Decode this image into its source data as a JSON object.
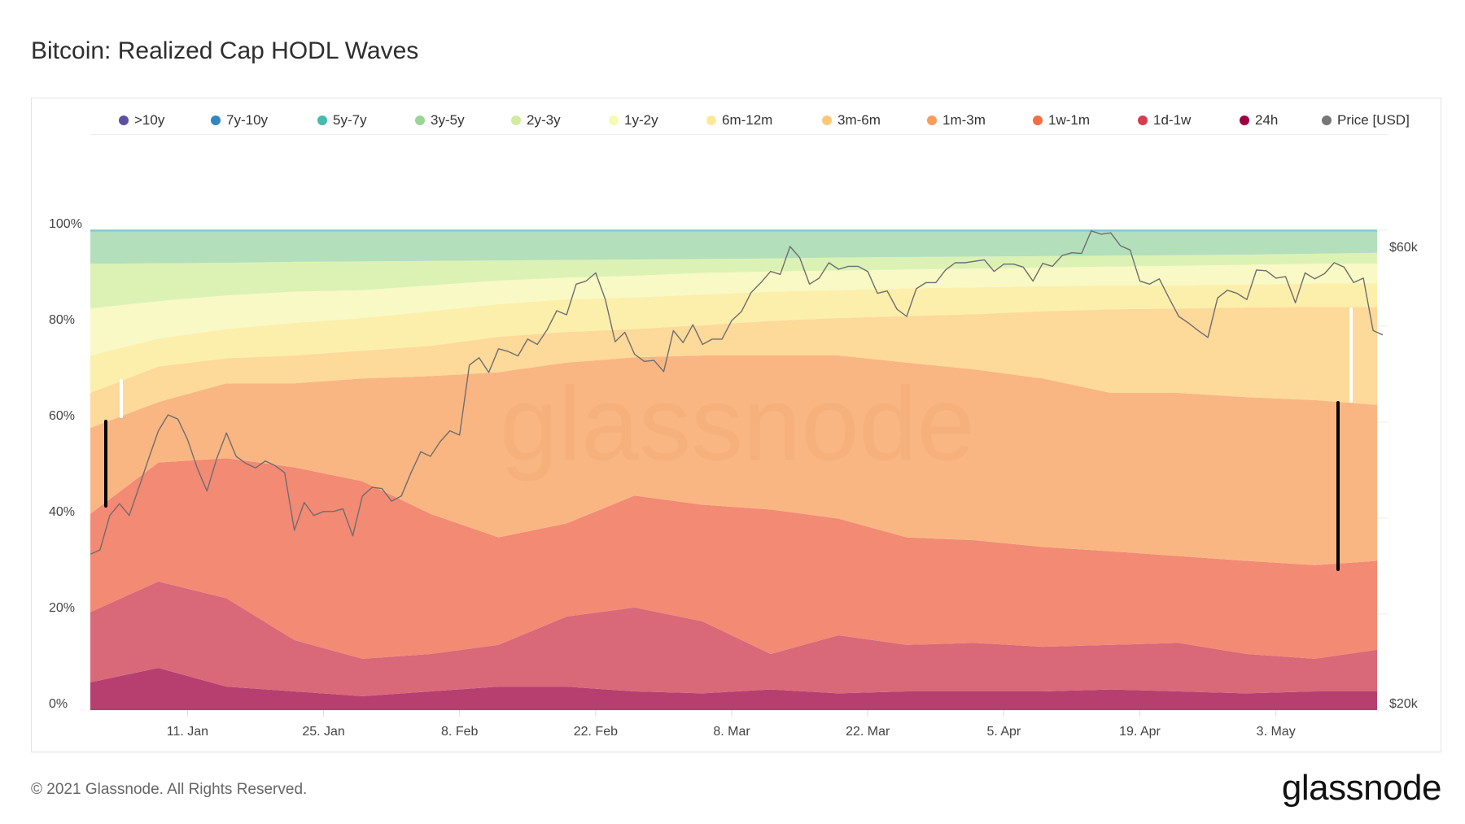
{
  "title": "Bitcoin: Realized Cap HODL Waves",
  "footer": "© 2021 Glassnode. All Rights Reserved.",
  "logo": "glassnode",
  "watermark": "glassnode",
  "chart_data": {
    "type": "area",
    "stacked": "percent",
    "title": "Bitcoin: Realized Cap HODL Waves",
    "legend_position": "top",
    "grid": true,
    "y_left": {
      "range": [
        0,
        100
      ],
      "unit": "%",
      "ticks": [
        "0%",
        "20%",
        "40%",
        "60%",
        "80%",
        "100%"
      ],
      "tick_values": [
        0,
        20,
        40,
        60,
        80,
        100
      ]
    },
    "y_right": {
      "scale": "log",
      "ticks": [
        "$20k",
        "$60k"
      ],
      "tick_values": [
        20000,
        60000
      ]
    },
    "x_ticks": [
      {
        "label": "11. Jan",
        "date": "2021-01-11"
      },
      {
        "label": "25. Jan",
        "date": "2021-01-25"
      },
      {
        "label": "8. Feb",
        "date": "2021-02-08"
      },
      {
        "label": "22. Feb",
        "date": "2021-02-22"
      },
      {
        "label": "8. Mar",
        "date": "2021-03-08"
      },
      {
        "label": "22. Mar",
        "date": "2021-03-22"
      },
      {
        "label": "5. Apr",
        "date": "2021-04-05"
      },
      {
        "label": "19. Apr",
        "date": "2021-04-19"
      },
      {
        "label": "3. May",
        "date": "2021-05-03"
      }
    ],
    "legend": [
      ">10y",
      "7y-10y",
      "5y-7y",
      "3y-5y",
      "2y-3y",
      "1y-2y",
      "6m-12m",
      "3m-6m",
      "1m-3m",
      "1w-1m",
      "1d-1w",
      "24h",
      "Price [USD]"
    ],
    "band_dates": [
      "2021-01-01",
      "2021-01-08",
      "2021-01-15",
      "2021-01-22",
      "2021-01-29",
      "2021-02-05",
      "2021-02-12",
      "2021-02-19",
      "2021-02-26",
      "2021-03-05",
      "2021-03-12",
      "2021-03-19",
      "2021-03-26",
      "2021-04-02",
      "2021-04-09",
      "2021-04-16",
      "2021-04-23",
      "2021-04-30",
      "2021-05-07",
      "2021-05-13"
    ],
    "series": [
      {
        "name": "24h",
        "color": "#9e0142",
        "fill": "#b63f70",
        "values": [
          5.8,
          8.8,
          4.9,
          3.9,
          2.9,
          3.9,
          4.9,
          4.9,
          3.9,
          3.5,
          4.3,
          3.5,
          3.9,
          3.9,
          3.9,
          4.3,
          3.9,
          3.5,
          3.9,
          3.9
        ]
      },
      {
        "name": "1d-1w",
        "color": "#d53e4f",
        "fill": "#d96879",
        "values": [
          14.6,
          18.0,
          18.4,
          10.7,
          7.8,
          7.8,
          8.7,
          14.6,
          17.5,
          15.0,
          7.4,
          12.1,
          9.7,
          10.1,
          9.3,
          9.3,
          10.1,
          8.2,
          6.8,
          8.7
        ]
      },
      {
        "name": "1w-1m",
        "color": "#f46d43",
        "fill": "#f28a74",
        "values": [
          20.5,
          24.8,
          29.2,
          36.0,
          37.0,
          29.2,
          22.4,
          19.4,
          23.3,
          24.3,
          30.1,
          24.3,
          22.4,
          21.4,
          20.8,
          19.5,
          18.1,
          19.4,
          19.5,
          18.5
        ]
      },
      {
        "name": "1m-3m",
        "color": "#fa9c5a",
        "fill": "#f9b682",
        "values": [
          17.9,
          12.6,
          15.6,
          17.5,
          21.4,
          28.7,
          34.4,
          33.5,
          28.8,
          31.1,
          32.1,
          34.0,
          36.4,
          35.6,
          35.1,
          33.0,
          34.0,
          34.1,
          34.4,
          32.5
        ]
      },
      {
        "name": "3m-6m",
        "color": "#fdc877",
        "fill": "#fdd99a",
        "values": [
          7.3,
          7.4,
          5.2,
          5.8,
          5.8,
          6.3,
          7.4,
          6.4,
          5.9,
          6.3,
          7.2,
          7.8,
          9.7,
          11.5,
          14.0,
          17.4,
          17.6,
          18.7,
          19.4,
          20.4
        ]
      },
      {
        "name": "6m-12m",
        "color": "#fee99a",
        "fill": "#fcefab",
        "values": [
          7.8,
          5.8,
          6.1,
          6.8,
          6.8,
          7.2,
          6.8,
          6.8,
          6.6,
          6.4,
          6.1,
          5.8,
          5.8,
          5.6,
          5.2,
          5.0,
          4.8,
          4.8,
          4.9,
          4.9
        ]
      },
      {
        "name": "1y-2y",
        "color": "#f6fbb0",
        "fill": "#f8f9c4",
        "values": [
          9.8,
          7.8,
          7.0,
          6.5,
          5.8,
          5.4,
          4.9,
          4.5,
          4.5,
          4.5,
          4.2,
          4.1,
          3.9,
          3.9,
          3.9,
          3.9,
          4.1,
          4.1,
          4.1,
          4.1
        ]
      },
      {
        "name": "2y-3y",
        "color": "#d1ec9c",
        "fill": "#dcf2b5",
        "values": [
          9.3,
          7.9,
          6.8,
          6.2,
          6.0,
          5.1,
          4.2,
          3.7,
          3.4,
          2.9,
          2.7,
          2.7,
          2.6,
          2.5,
          2.4,
          2.3,
          2.2,
          2.1,
          2.1,
          2.3
        ]
      },
      {
        "name": "3y-5y",
        "color": "#99d594",
        "fill": "#b3dfbb",
        "values": [
          6.6,
          6.5,
          6.4,
          6.2,
          6.1,
          6.0,
          5.9,
          5.8,
          5.7,
          5.6,
          5.5,
          5.3,
          5.2,
          5.1,
          5.0,
          4.9,
          4.8,
          4.7,
          4.5,
          4.3
        ]
      },
      {
        "name": "5y-7y",
        "color": "#48b9ad",
        "fill": "#8fd3c9",
        "values": [
          0.25,
          0.25,
          0.25,
          0.25,
          0.25,
          0.25,
          0.25,
          0.25,
          0.25,
          0.25,
          0.25,
          0.25,
          0.25,
          0.25,
          0.25,
          0.25,
          0.25,
          0.25,
          0.25,
          0.25
        ]
      },
      {
        "name": "7y-10y",
        "color": "#3288bd",
        "fill": "#7fb3dc",
        "values": [
          0.1,
          0.1,
          0.1,
          0.1,
          0.1,
          0.1,
          0.1,
          0.1,
          0.1,
          0.1,
          0.1,
          0.1,
          0.1,
          0.1,
          0.1,
          0.1,
          0.1,
          0.1,
          0.1,
          0.1
        ]
      },
      {
        "name": ">10y",
        "color": "#5e4fa2",
        "fill": "#9b8fc9",
        "values": [
          0.05,
          0.05,
          0.05,
          0.05,
          0.05,
          0.05,
          0.05,
          0.05,
          0.05,
          0.05,
          0.05,
          0.05,
          0.05,
          0.05,
          0.05,
          0.05,
          0.05,
          0.05,
          0.05,
          0.05
        ]
      }
    ],
    "price": {
      "name": "Price [USD]",
      "color": "#777777",
      "dates": [
        "2021-01-01",
        "2021-01-02",
        "2021-01-03",
        "2021-01-04",
        "2021-01-05",
        "2021-01-06",
        "2021-01-07",
        "2021-01-08",
        "2021-01-09",
        "2021-01-10",
        "2021-01-11",
        "2021-01-12",
        "2021-01-13",
        "2021-01-14",
        "2021-01-15",
        "2021-01-16",
        "2021-01-17",
        "2021-01-18",
        "2021-01-19",
        "2021-01-20",
        "2021-01-21",
        "2021-01-22",
        "2021-01-23",
        "2021-01-24",
        "2021-01-25",
        "2021-01-26",
        "2021-01-27",
        "2021-01-28",
        "2021-01-29",
        "2021-01-30",
        "2021-01-31",
        "2021-02-01",
        "2021-02-02",
        "2021-02-03",
        "2021-02-04",
        "2021-02-05",
        "2021-02-06",
        "2021-02-07",
        "2021-02-08",
        "2021-02-09",
        "2021-02-10",
        "2021-02-11",
        "2021-02-12",
        "2021-02-13",
        "2021-02-14",
        "2021-02-15",
        "2021-02-16",
        "2021-02-17",
        "2021-02-18",
        "2021-02-19",
        "2021-02-20",
        "2021-02-21",
        "2021-02-22",
        "2021-02-23",
        "2021-02-24",
        "2021-02-25",
        "2021-02-26",
        "2021-02-27",
        "2021-02-28",
        "2021-03-01",
        "2021-03-02",
        "2021-03-03",
        "2021-03-04",
        "2021-03-05",
        "2021-03-06",
        "2021-03-07",
        "2021-03-08",
        "2021-03-09",
        "2021-03-10",
        "2021-03-11",
        "2021-03-12",
        "2021-03-13",
        "2021-03-14",
        "2021-03-15",
        "2021-03-16",
        "2021-03-17",
        "2021-03-18",
        "2021-03-19",
        "2021-03-20",
        "2021-03-21",
        "2021-03-22",
        "2021-03-23",
        "2021-03-24",
        "2021-03-25",
        "2021-03-26",
        "2021-03-27",
        "2021-03-28",
        "2021-03-29",
        "2021-03-30",
        "2021-03-31",
        "2021-04-01",
        "2021-04-02",
        "2021-04-03",
        "2021-04-04",
        "2021-04-05",
        "2021-04-06",
        "2021-04-07",
        "2021-04-08",
        "2021-04-09",
        "2021-04-10",
        "2021-04-11",
        "2021-04-12",
        "2021-04-13",
        "2021-04-14",
        "2021-04-15",
        "2021-04-16",
        "2021-04-17",
        "2021-04-18",
        "2021-04-19",
        "2021-04-20",
        "2021-04-21",
        "2021-04-22",
        "2021-04-23",
        "2021-04-24",
        "2021-04-25",
        "2021-04-26",
        "2021-04-27",
        "2021-04-28",
        "2021-04-29",
        "2021-04-30",
        "2021-05-01",
        "2021-05-02",
        "2021-05-03",
        "2021-05-04",
        "2021-05-05",
        "2021-05-06",
        "2021-05-07",
        "2021-05-08",
        "2021-05-09",
        "2021-05-10",
        "2021-05-11",
        "2021-05-12",
        "2021-05-13",
        "2021-05-14"
      ],
      "values": [
        28600,
        28900,
        31400,
        32300,
        31400,
        33600,
        36000,
        38500,
        40000,
        39600,
        37700,
        35200,
        33300,
        36000,
        38300,
        36200,
        35600,
        35200,
        35800,
        35400,
        34800,
        30300,
        32400,
        31400,
        31700,
        31700,
        31900,
        29900,
        32900,
        33600,
        33500,
        32500,
        32900,
        34800,
        36600,
        36200,
        37500,
        38500,
        38100,
        45100,
        45900,
        44300,
        46900,
        46600,
        46100,
        48000,
        47400,
        49100,
        51400,
        50900,
        54800,
        55200,
        56300,
        52800,
        47700,
        48800,
        46300,
        45500,
        45600,
        44400,
        49000,
        47600,
        49700,
        47400,
        48000,
        48000,
        50200,
        51300,
        53700,
        55000,
        56500,
        56100,
        60000,
        58400,
        54800,
        55600,
        57700,
        56800,
        57200,
        57200,
        56500,
        53600,
        53900,
        51600,
        50700,
        54200,
        55000,
        55000,
        56700,
        57700,
        57700,
        57900,
        58100,
        56500,
        57500,
        57500,
        57100,
        55200,
        57600,
        57200,
        58700,
        59100,
        59000,
        62300,
        61800,
        62000,
        60100,
        59500,
        55200,
        54800,
        55500,
        53000,
        50700,
        49900,
        49000,
        48200,
        53000,
        54000,
        53600,
        52800,
        56700,
        56600,
        55600,
        55800,
        52400,
        56300,
        55500,
        56200,
        57700,
        57100,
        55000,
        55600,
        49000,
        48500
      ]
    }
  }
}
